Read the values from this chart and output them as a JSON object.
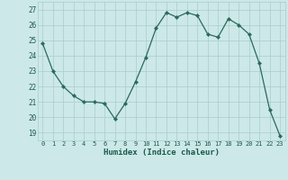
{
  "x": [
    0,
    1,
    2,
    3,
    4,
    5,
    6,
    7,
    8,
    9,
    10,
    11,
    12,
    13,
    14,
    15,
    16,
    17,
    18,
    19,
    20,
    21,
    22,
    23
  ],
  "y": [
    24.8,
    23.0,
    22.0,
    21.4,
    21.0,
    21.0,
    20.9,
    19.9,
    20.9,
    22.3,
    23.9,
    25.8,
    26.8,
    26.5,
    26.8,
    26.6,
    25.4,
    25.2,
    26.4,
    26.0,
    25.4,
    23.5,
    20.5,
    18.8
  ],
  "xlabel": "Humidex (Indice chaleur)",
  "xlim": [
    -0.5,
    23.5
  ],
  "ylim": [
    18.5,
    27.5
  ],
  "yticks": [
    19,
    20,
    21,
    22,
    23,
    24,
    25,
    26,
    27
  ],
  "xticks": [
    0,
    1,
    2,
    3,
    4,
    5,
    6,
    7,
    8,
    9,
    10,
    11,
    12,
    13,
    14,
    15,
    16,
    17,
    18,
    19,
    20,
    21,
    22,
    23
  ],
  "bg_color": "#cce8e8",
  "grid_color": "#aacccc",
  "line_color": "#2a6a5a",
  "marker_color": "#2a6a5a",
  "label_color": "#1a5a4a",
  "tick_color": "#1a5a4a"
}
